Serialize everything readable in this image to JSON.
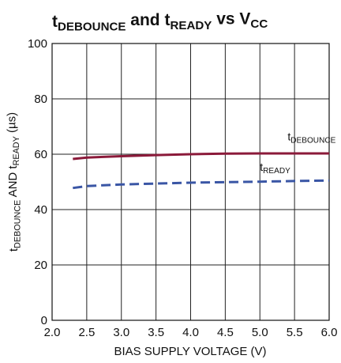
{
  "chart_data": {
    "type": "line",
    "title": [
      {
        "text": "t",
        "sub": false
      },
      {
        "text": "DEBOUNCE",
        "sub": true
      },
      {
        "text": " and t",
        "sub": false
      },
      {
        "text": "READY",
        "sub": true
      },
      {
        "text": " vs V",
        "sub": false
      },
      {
        "text": "CC",
        "sub": true
      }
    ],
    "x_label": [
      {
        "text": "BIAS SUPPLY VOLTAGE (V)",
        "sub": false
      }
    ],
    "y_label": [
      {
        "text": "t",
        "sub": false
      },
      {
        "text": "DEBOUNCE",
        "sub": true
      },
      {
        "text": " AND t",
        "sub": false
      },
      {
        "text": "READY",
        "sub": true
      },
      {
        "text": " (µs)",
        "sub": false
      }
    ],
    "x": [
      2.3,
      2.5,
      3.0,
      3.5,
      4.0,
      4.5,
      5.0,
      5.5,
      6.0
    ],
    "series": [
      {
        "name": [
          {
            "text": "t",
            "sub": false
          },
          {
            "text": "DEBOUNCE",
            "sub": true
          }
        ],
        "color": "#8b1a3a",
        "dashed": false,
        "values": [
          58.3,
          58.8,
          59.3,
          59.7,
          60.0,
          60.2,
          60.3,
          60.3,
          60.3
        ]
      },
      {
        "name": [
          {
            "text": "t",
            "sub": false
          },
          {
            "text": "READY",
            "sub": true
          }
        ],
        "color": "#3a56a5",
        "dashed": true,
        "values": [
          47.8,
          48.5,
          49.1,
          49.4,
          49.7,
          49.9,
          50.1,
          50.3,
          50.5
        ]
      }
    ],
    "xlim": [
      2.0,
      6.0
    ],
    "xticks": [
      {
        "value": 2.0,
        "label": "2.0"
      },
      {
        "value": 2.5,
        "label": "2.5"
      },
      {
        "value": 3.0,
        "label": "3.0"
      },
      {
        "value": 3.5,
        "label": "3.5"
      },
      {
        "value": 4.0,
        "label": "4.0"
      },
      {
        "value": 4.5,
        "label": "4.5"
      },
      {
        "value": 5.0,
        "label": "5.0"
      },
      {
        "value": 5.5,
        "label": "5.5"
      },
      {
        "value": 6.0,
        "label": "6.0"
      }
    ],
    "ylim": [
      0,
      100
    ],
    "yticks": [
      0,
      20,
      40,
      60,
      80,
      100
    ],
    "grid": true
  }
}
